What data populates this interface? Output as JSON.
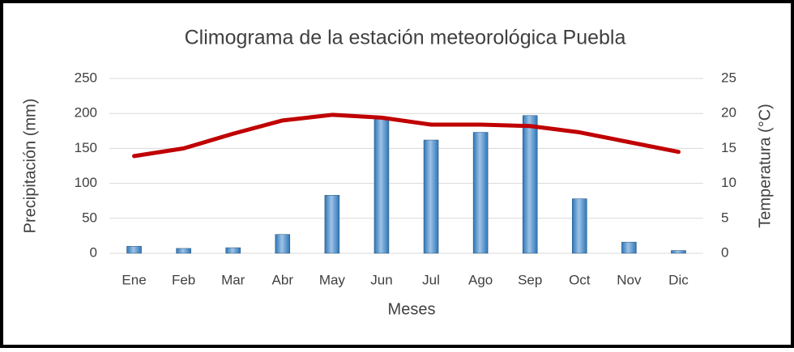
{
  "chart_data": {
    "type": "bar-line",
    "title": "Climograma de la estación meteorológica Puebla",
    "x_label": "Meses",
    "y_label": "Precipitación (mm)",
    "y2_label": "Temperatura (°C)",
    "categories": [
      "Ene",
      "Feb",
      "Mar",
      "Abr",
      "May",
      "Jun",
      "Jul",
      "Ago",
      "Sep",
      "Oct",
      "Nov",
      "Dic"
    ],
    "series": [
      {
        "name": "Precipitación",
        "color": "#5b9bd5",
        "values": [
          10,
          7,
          8,
          27,
          83,
          194,
          162,
          173,
          197,
          78,
          16,
          4
        ]
      },
      {
        "name": "Temperatura",
        "color": "#c00000",
        "axis": "y2",
        "values": [
          13.9,
          15,
          17.1,
          19,
          19.8,
          19.4,
          18.4,
          18.4,
          18.2,
          17.3,
          15.9,
          14.5
        ]
      }
    ],
    "ylim": [
      0,
      250
    ],
    "yticks": [
      0,
      50,
      100,
      150,
      200,
      250
    ],
    "y2lim": [
      0,
      25
    ],
    "y2ticks": [
      0,
      5,
      10,
      15,
      20,
      25
    ],
    "grid": true
  }
}
